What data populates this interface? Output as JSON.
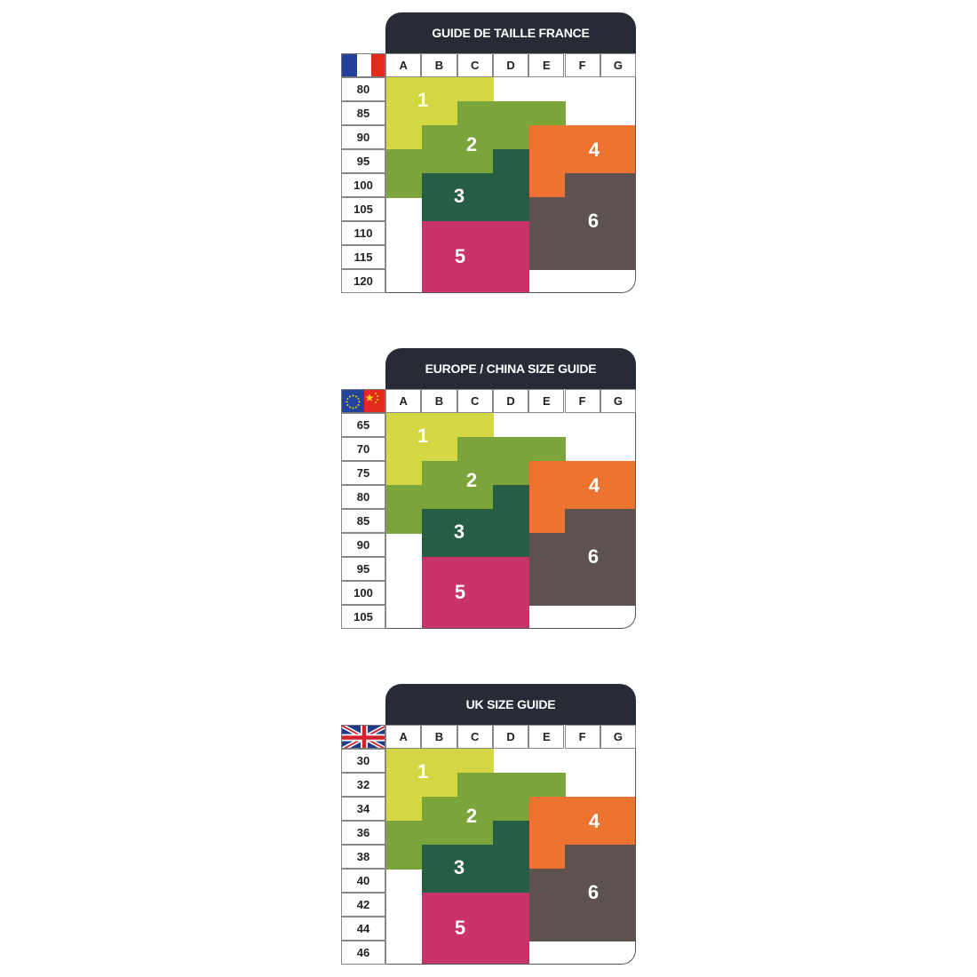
{
  "columns": [
    "A",
    "B",
    "C",
    "D",
    "E",
    "F",
    "G"
  ],
  "zone_colors": {
    "1": "#d3d743",
    "2": "#7ba53a",
    "3": "#255d45",
    "4": "#ed7330",
    "5": "#c8336a",
    "6": "#5e5250"
  },
  "zones": [
    {
      "label": "1",
      "cells": [
        [
          "A",
          0
        ],
        [
          "B",
          0
        ],
        [
          "C",
          0
        ],
        [
          "A",
          1
        ],
        [
          "B",
          1
        ],
        [
          "A",
          2
        ]
      ]
    },
    {
      "label": "2",
      "cells": [
        [
          "C",
          1
        ],
        [
          "D",
          1
        ],
        [
          "E",
          1
        ],
        [
          "B",
          2
        ],
        [
          "C",
          2
        ],
        [
          "D",
          2
        ],
        [
          "A",
          3
        ],
        [
          "B",
          3
        ],
        [
          "C",
          3
        ],
        [
          "A",
          4
        ]
      ]
    },
    {
      "label": "3",
      "cells": [
        [
          "D",
          3
        ],
        [
          "B",
          4
        ],
        [
          "C",
          4
        ],
        [
          "D",
          4
        ],
        [
          "B",
          5
        ],
        [
          "C",
          5
        ],
        [
          "D",
          5
        ]
      ]
    },
    {
      "label": "4",
      "cells": [
        [
          "E",
          2
        ],
        [
          "F",
          2
        ],
        [
          "G",
          2
        ],
        [
          "E",
          3
        ],
        [
          "F",
          3
        ],
        [
          "G",
          3
        ],
        [
          "E",
          4
        ]
      ]
    },
    {
      "label": "5",
      "cells": [
        [
          "B",
          6
        ],
        [
          "C",
          6
        ],
        [
          "D",
          6
        ],
        [
          "B",
          7
        ],
        [
          "C",
          7
        ],
        [
          "D",
          7
        ],
        [
          "B",
          8
        ],
        [
          "C",
          8
        ],
        [
          "D",
          8
        ]
      ]
    },
    {
      "label": "6",
      "cells": [
        [
          "F",
          4
        ],
        [
          "G",
          4
        ],
        [
          "E",
          5
        ],
        [
          "F",
          5
        ],
        [
          "G",
          5
        ],
        [
          "E",
          6
        ],
        [
          "F",
          6
        ],
        [
          "G",
          6
        ],
        [
          "E",
          7
        ],
        [
          "F",
          7
        ],
        [
          "G",
          7
        ]
      ]
    }
  ],
  "charts": [
    {
      "title": "GUIDE DE TAILLE FRANCE",
      "flag": "france-flag-icon",
      "rows": [
        "80",
        "85",
        "90",
        "95",
        "100",
        "105",
        "110",
        "115",
        "120"
      ]
    },
    {
      "title": "EUROPE / CHINA SIZE GUIDE",
      "flag": "eu-china-flag-icon",
      "rows": [
        "65",
        "70",
        "75",
        "80",
        "85",
        "90",
        "95",
        "100",
        "105"
      ]
    },
    {
      "title": "UK SIZE GUIDE",
      "flag": "uk-flag-icon",
      "rows": [
        "30",
        "32",
        "34",
        "36",
        "38",
        "40",
        "42",
        "44",
        "46"
      ]
    }
  ]
}
